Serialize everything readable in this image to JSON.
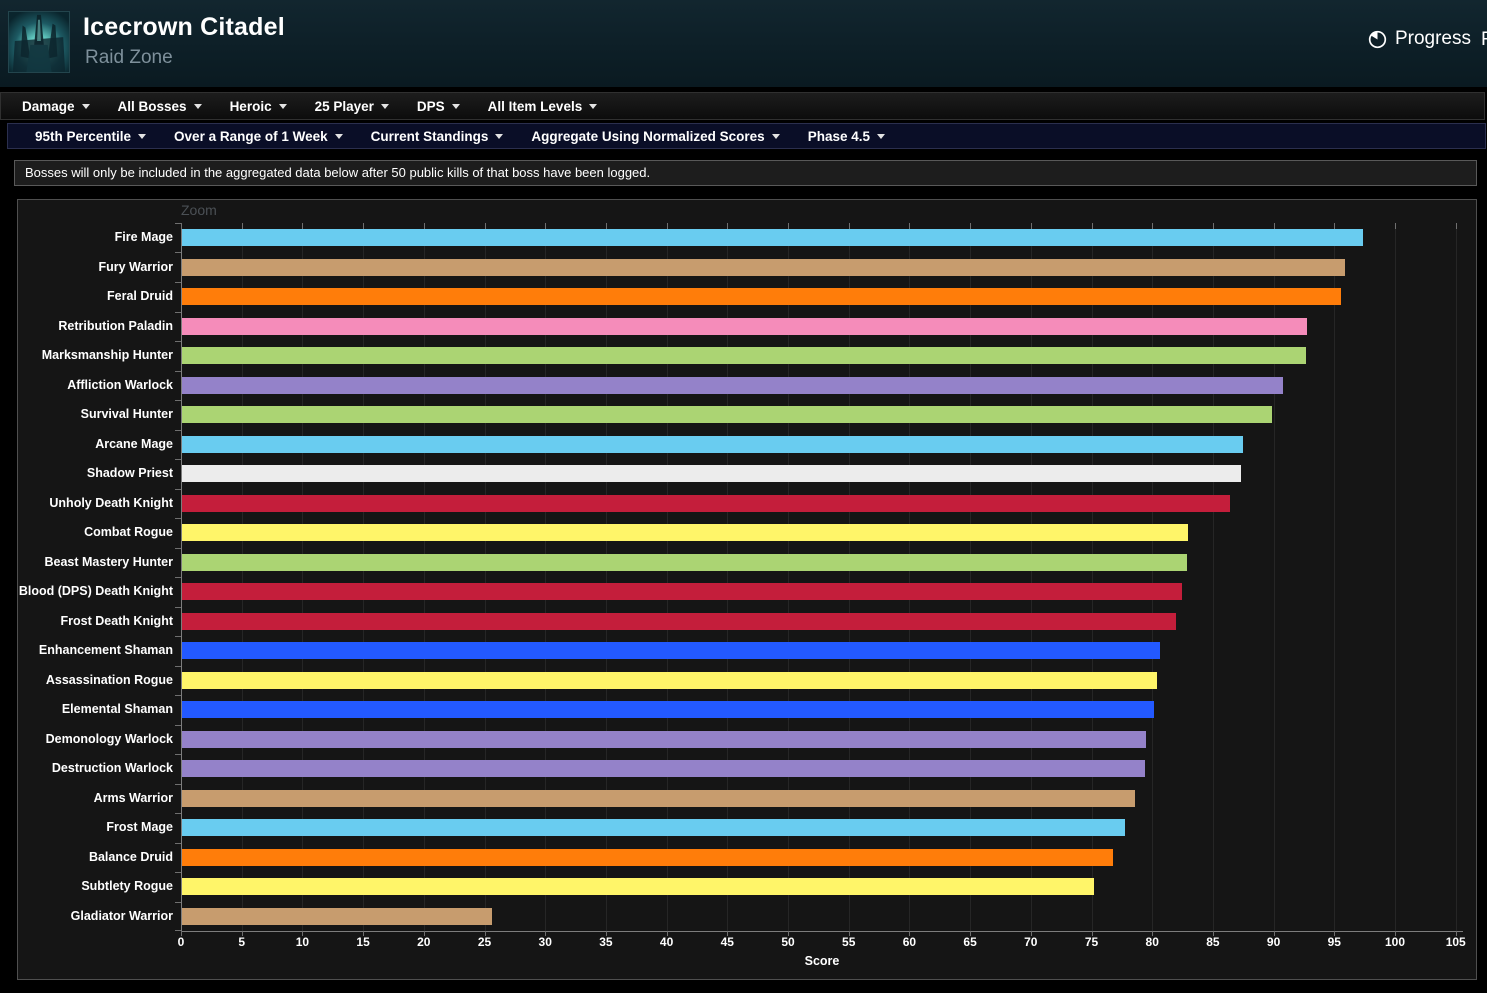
{
  "header": {
    "title": "Icecrown Citadel",
    "subtitle": "Raid Zone",
    "progress_label": "Progress",
    "clipped_text": "R"
  },
  "nav_primary": {
    "items": [
      {
        "label": "Damage"
      },
      {
        "label": "All Bosses"
      },
      {
        "label": "Heroic"
      },
      {
        "label": "25 Player"
      },
      {
        "label": "DPS"
      },
      {
        "label": "All Item Levels"
      }
    ]
  },
  "nav_secondary": {
    "items": [
      {
        "label": "95th Percentile"
      },
      {
        "label": "Over a Range of 1 Week"
      },
      {
        "label": "Current Standings"
      },
      {
        "label": "Aggregate Using Normalized Scores"
      },
      {
        "label": "Phase 4.5"
      }
    ]
  },
  "notice": {
    "text": "Bosses will only be included in the aggregated data below after 50 public kills of that boss have been logged."
  },
  "chart_data": {
    "type": "bar",
    "orientation": "horizontal",
    "zoom_label": "Zoom",
    "xlabel": "Score",
    "xlim": [
      0,
      105.6
    ],
    "xticks": [
      0,
      5,
      10,
      15,
      20,
      25,
      30,
      35,
      40,
      45,
      50,
      55,
      60,
      65,
      70,
      75,
      80,
      85,
      90,
      95,
      100,
      105
    ],
    "grid": "vertical",
    "legend": "none",
    "categories": [
      "Fire Mage",
      "Fury Warrior",
      "Feral Druid",
      "Retribution Paladin",
      "Marksmanship Hunter",
      "Affliction Warlock",
      "Survival Hunter",
      "Arcane Mage",
      "Shadow Priest",
      "Unholy Death Knight",
      "Combat Rogue",
      "Beast Mastery Hunter",
      "Blood (DPS) Death Knight",
      "Frost Death Knight",
      "Enhancement Shaman",
      "Assassination Rogue",
      "Elemental Shaman",
      "Demonology Warlock",
      "Destruction Warlock",
      "Arms Warrior",
      "Frost Mage",
      "Balance Druid",
      "Subtlety Rogue",
      "Gladiator Warrior"
    ],
    "values": [
      97.3,
      95.8,
      95.5,
      92.7,
      92.6,
      90.7,
      89.8,
      87.4,
      87.2,
      86.3,
      82.9,
      82.8,
      82.4,
      81.9,
      80.6,
      80.3,
      80.1,
      79.4,
      79.3,
      78.5,
      77.7,
      76.7,
      75.1,
      25.5
    ],
    "colors": [
      "#69CCF0",
      "#C79C6E",
      "#FF7D0A",
      "#F58CBA",
      "#ABD473",
      "#9482C9",
      "#ABD473",
      "#69CCF0",
      "#ECECEC",
      "#C41E3B",
      "#FFF569",
      "#ABD473",
      "#C41E3B",
      "#C41E3B",
      "#2359FF",
      "#FFF569",
      "#2359FF",
      "#9482C9",
      "#9482C9",
      "#C79C6E",
      "#69CCF0",
      "#FF7D0A",
      "#FFF569",
      "#C79C6E"
    ],
    "accent_colors": {
      "page_background": "#000000",
      "chart_background": "#151515",
      "gridline": "#262626",
      "axis": "#7d7d7d",
      "nav_secondary_background": "#0a0e27"
    }
  }
}
